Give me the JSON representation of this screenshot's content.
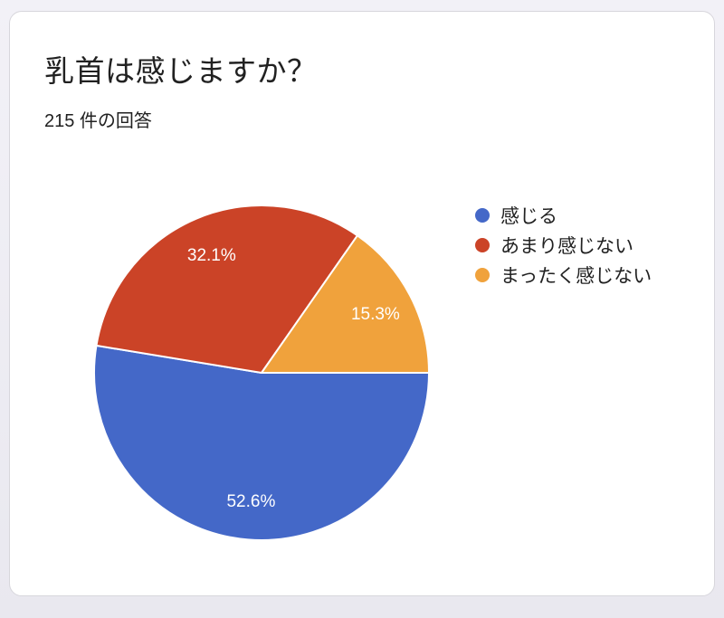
{
  "page": {
    "background_top": "#F2F1F7",
    "background_bottom": "#E9E8EF",
    "card_background": "#FFFFFF",
    "card_border": "#D7D6DC",
    "text_color": "#212121",
    "slice_label_color": "#FFFFFF"
  },
  "header": {
    "title": "乳首は感じますか？",
    "response_count": "215 件の回答"
  },
  "chart_data": {
    "type": "pie",
    "title": "乳首は感じますか？",
    "subtitle": "215 件の回答",
    "total_responses": 215,
    "legend_position": "right",
    "start_angle": "3-oclock",
    "direction": "clockwise",
    "label_format": "percent",
    "slices": [
      {
        "label": "感じる",
        "percent": 52.6,
        "percent_label": "52.6%",
        "color": "#4468C8"
      },
      {
        "label": "あまり感じない",
        "percent": 32.1,
        "percent_label": "32.1%",
        "color": "#CB4327"
      },
      {
        "label": "まったく感じない",
        "percent": 15.3,
        "percent_label": "15.3%",
        "color": "#F0A23C"
      }
    ]
  }
}
